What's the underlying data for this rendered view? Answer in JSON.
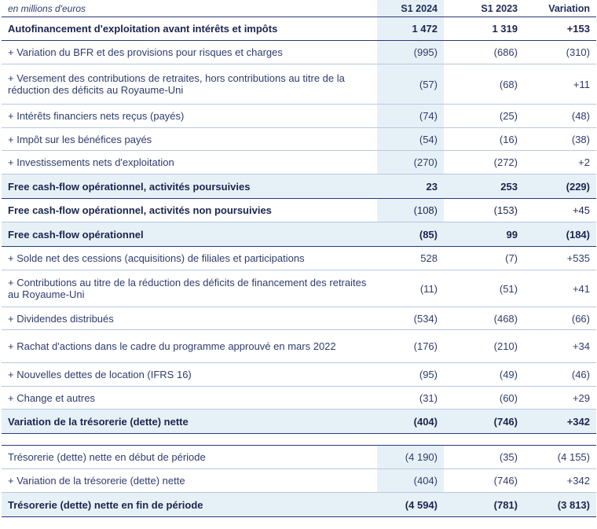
{
  "header": {
    "unit": "en millions d'euros",
    "col1": "S1 2024",
    "col2": "S1 2023",
    "col3": "Variation"
  },
  "rows": [
    {
      "label": "Autofinancement d'exploitation avant intérêts et impôts",
      "v1": "1 472",
      "v2": "1 319",
      "v3": "+153"
    },
    {
      "label": "+ Variation du BFR et des provisions pour risques et charges",
      "v1": "(995)",
      "v2": "(686)",
      "v3": "(310)"
    },
    {
      "label": "+ Versement des contributions de retraites, hors contributions au titre de la réduction des déficits au Royaume-Uni",
      "v1": "(57)",
      "v2": "(68)",
      "v3": "+11"
    },
    {
      "label": "+ Intérêts financiers nets reçus (payés)",
      "v1": "(74)",
      "v2": "(25)",
      "v3": "(48)"
    },
    {
      "label": "+ Impôt sur les bénéfices payés",
      "v1": "(54)",
      "v2": "(16)",
      "v3": "(38)"
    },
    {
      "label": "+ Investissements nets d'exploitation",
      "v1": "(270)",
      "v2": "(272)",
      "v3": "+2"
    },
    {
      "label": "Free cash-flow opérationnel, activités poursuivies",
      "v1": "23",
      "v2": "253",
      "v3": "(229)"
    },
    {
      "label": "Free cash-flow opérationnel, activités non poursuivies",
      "v1": "(108)",
      "v2": "(153)",
      "v3": "+45"
    },
    {
      "label": "Free cash-flow opérationnel",
      "v1": "(85)",
      "v2": "99",
      "v3": "(184)"
    },
    {
      "label": "+ Solde net des cessions (acquisitions) de filiales et participations",
      "v1": "528",
      "v2": "(7)",
      "v3": "+535"
    },
    {
      "label": "+ Contributions au titre de la réduction des déficits de financement des retraites au Royaume-Uni",
      "v1": "(11)",
      "v2": "(51)",
      "v3": "+41"
    },
    {
      "label": "+ Dividendes distribués",
      "v1": "(534)",
      "v2": "(468)",
      "v3": "(66)"
    },
    {
      "label": "+ Rachat d'actions dans le cadre du programme approuvé en mars 2022",
      "v1": "(176)",
      "v2": "(210)",
      "v3": "+34"
    },
    {
      "label": "+ Nouvelles dettes de location (IFRS 16)",
      "v1": "(95)",
      "v2": "(49)",
      "v3": "(46)"
    },
    {
      "label": "+ Change et autres",
      "v1": "(31)",
      "v2": "(60)",
      "v3": "+29"
    },
    {
      "label": "Variation de la trésorerie (dette) nette",
      "v1": "(404)",
      "v2": "(746)",
      "v3": "+342"
    },
    {
      "label": "Trésorerie (dette) nette en début de période",
      "v1": "(4 190)",
      "v2": "(35)",
      "v3": "(4 155)"
    },
    {
      "label": "+ Variation de la trésorerie (dette) nette",
      "v1": "(404)",
      "v2": "(746)",
      "v3": "+342"
    },
    {
      "label": "Trésorerie (dette) nette en fin de période",
      "v1": "(4 594)",
      "v2": "(781)",
      "v3": "(3 813)"
    }
  ]
}
